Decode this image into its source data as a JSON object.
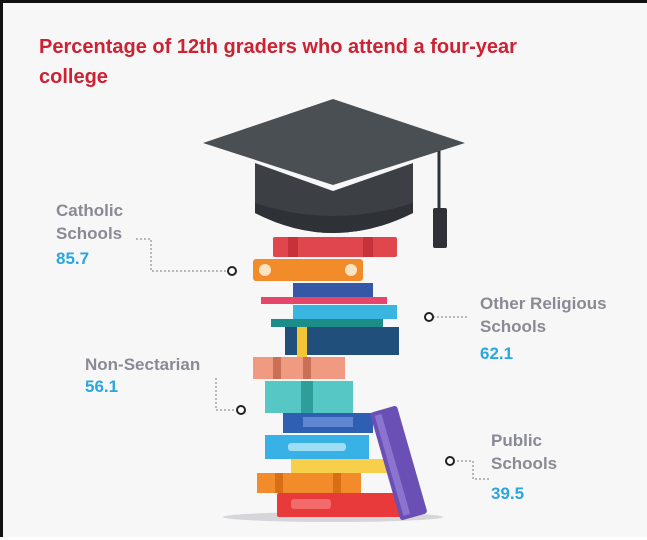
{
  "chart_data": {
    "type": "infographic",
    "title": "Percentage of 12th graders who attend a four-year college",
    "categories": [
      "Catholic Schools",
      "Other Religious Schools",
      "Non-Sectarian",
      "Public Schools"
    ],
    "values": [
      85.7,
      62.1,
      56.1,
      39.5
    ],
    "labels": {
      "catholic": "Catholic\nSchools",
      "other_religious": "Other Religious\nSchools",
      "non_sectarian": "Non-Sectarian",
      "public": "Public\nSchools"
    },
    "value_text": {
      "catholic": "85.7",
      "other_religious": "62.1",
      "non_sectarian": "56.1",
      "public": "39.5"
    }
  },
  "colors": {
    "title": "#cc2233",
    "label": "#8a8a95",
    "value": "#2aa7dc",
    "cap": "#4a4f54"
  }
}
